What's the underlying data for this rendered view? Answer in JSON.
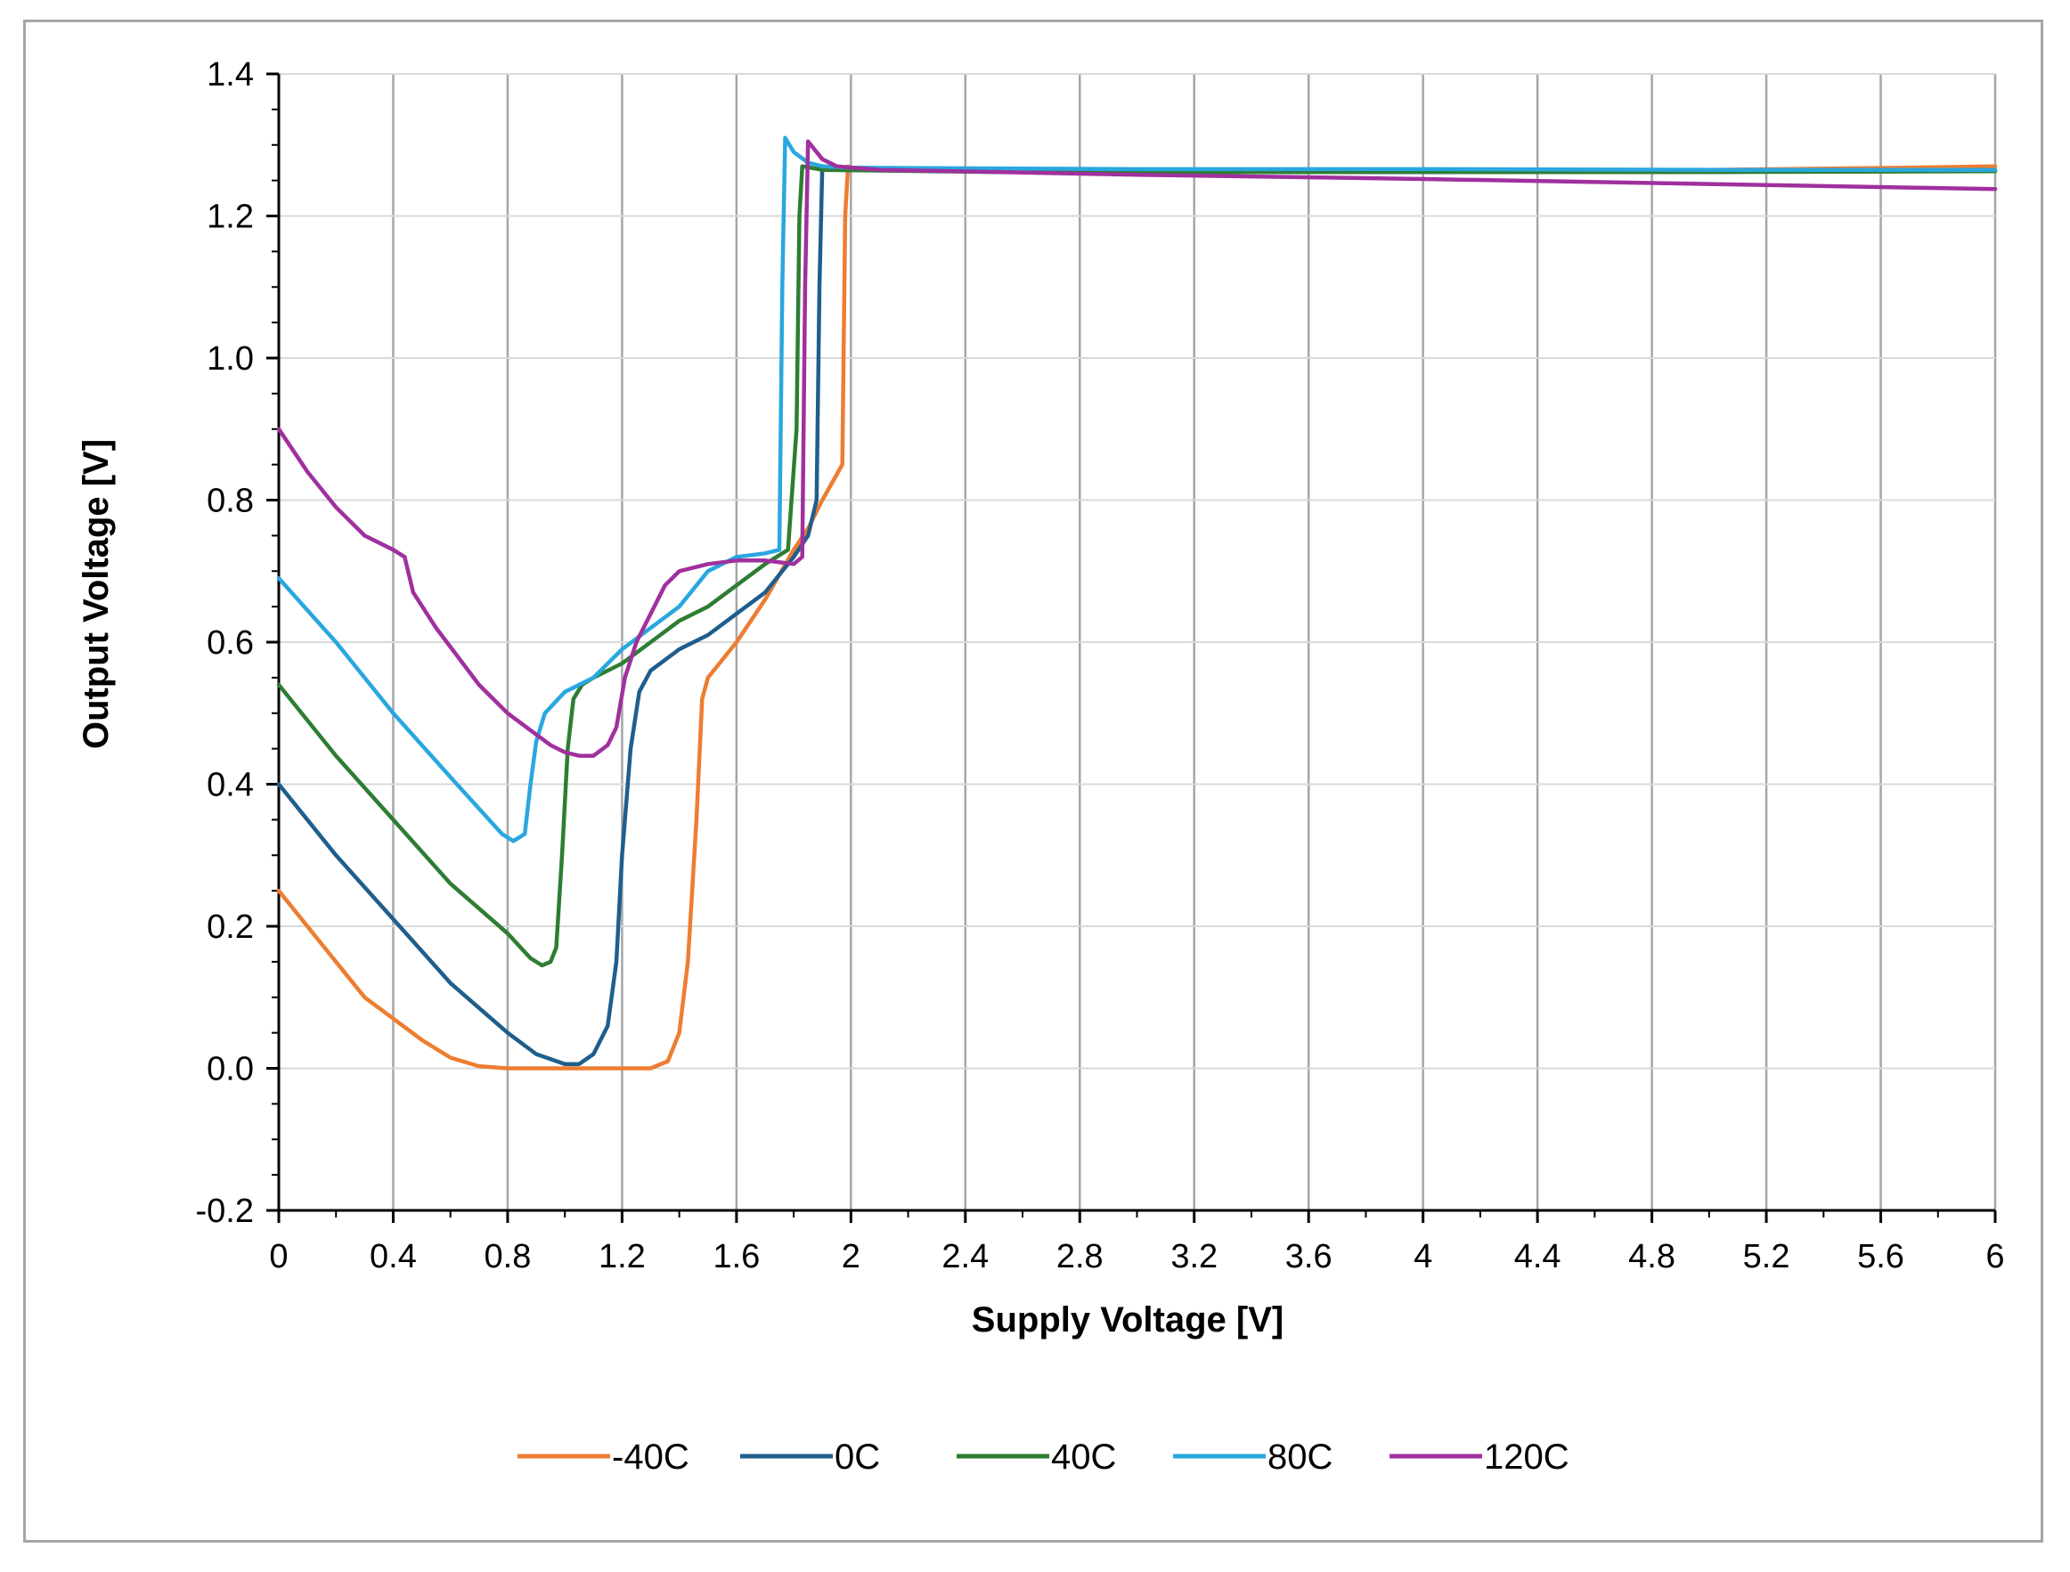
{
  "chart_data": {
    "type": "line",
    "xlabel": "Supply Voltage [V]",
    "ylabel": "Output Voltage [V]",
    "xlim": [
      0,
      6
    ],
    "ylim": [
      -0.2,
      1.4
    ],
    "xticks": [
      0,
      0.4,
      0.8,
      1.2,
      1.6,
      2,
      2.4,
      2.8,
      3.2,
      3.6,
      4,
      4.4,
      4.8,
      5.2,
      5.6,
      6
    ],
    "xtick_labels": [
      "0",
      "0.4",
      "0.8",
      "1.2",
      "1.6",
      "2",
      "2.4",
      "2.8",
      "3.2",
      "3.6",
      "4",
      "4.4",
      "4.8",
      "5.2",
      "5.6",
      "6"
    ],
    "yticks": [
      -0.2,
      0,
      0.2,
      0.4,
      0.6,
      0.8,
      1.0,
      1.2,
      1.4
    ],
    "ytick_labels": [
      "-0.2",
      "0.0",
      "0.2",
      "0.4",
      "0.6",
      "0.8",
      "1.0",
      "1.2",
      "1.4"
    ],
    "grid": "vertical and horizontal major gridlines",
    "legend_position": "bottom",
    "series": [
      {
        "name": "-40C",
        "color": "#ED7D31",
        "points": [
          [
            0,
            0.25
          ],
          [
            0.1,
            0.2
          ],
          [
            0.2,
            0.15
          ],
          [
            0.3,
            0.1
          ],
          [
            0.4,
            0.07
          ],
          [
            0.5,
            0.04
          ],
          [
            0.6,
            0.015
          ],
          [
            0.7,
            0.003
          ],
          [
            0.8,
            0
          ],
          [
            1.0,
            0
          ],
          [
            1.2,
            0
          ],
          [
            1.3,
            0
          ],
          [
            1.36,
            0.01
          ],
          [
            1.4,
            0.05
          ],
          [
            1.43,
            0.15
          ],
          [
            1.46,
            0.35
          ],
          [
            1.48,
            0.52
          ],
          [
            1.5,
            0.55
          ],
          [
            1.6,
            0.6
          ],
          [
            1.7,
            0.66
          ],
          [
            1.8,
            0.73
          ],
          [
            1.85,
            0.76
          ],
          [
            1.9,
            0.8
          ],
          [
            1.97,
            0.85
          ],
          [
            1.98,
            1.2
          ],
          [
            1.99,
            1.27
          ],
          [
            2.0,
            1.265
          ],
          [
            3,
            1.262
          ],
          [
            4,
            1.262
          ],
          [
            5,
            1.265
          ],
          [
            5.7,
            1.268
          ],
          [
            6,
            1.27
          ]
        ]
      },
      {
        "name": "0C",
        "color": "#1F5E8C",
        "points": [
          [
            0,
            0.4
          ],
          [
            0.2,
            0.3
          ],
          [
            0.4,
            0.21
          ],
          [
            0.6,
            0.12
          ],
          [
            0.8,
            0.05
          ],
          [
            0.9,
            0.02
          ],
          [
            1.0,
            0.006
          ],
          [
            1.05,
            0.006
          ],
          [
            1.1,
            0.02
          ],
          [
            1.15,
            0.06
          ],
          [
            1.18,
            0.15
          ],
          [
            1.2,
            0.3
          ],
          [
            1.23,
            0.45
          ],
          [
            1.26,
            0.53
          ],
          [
            1.3,
            0.56
          ],
          [
            1.4,
            0.59
          ],
          [
            1.5,
            0.61
          ],
          [
            1.6,
            0.64
          ],
          [
            1.7,
            0.67
          ],
          [
            1.8,
            0.72
          ],
          [
            1.85,
            0.75
          ],
          [
            1.88,
            0.8
          ],
          [
            1.89,
            1.1
          ],
          [
            1.9,
            1.27
          ],
          [
            1.95,
            1.265
          ],
          [
            2.5,
            1.263
          ],
          [
            3,
            1.262
          ],
          [
            4,
            1.262
          ],
          [
            5,
            1.262
          ],
          [
            6,
            1.265
          ]
        ]
      },
      {
        "name": "40C",
        "color": "#2E7D32",
        "points": [
          [
            0,
            0.54
          ],
          [
            0.2,
            0.44
          ],
          [
            0.4,
            0.35
          ],
          [
            0.6,
            0.26
          ],
          [
            0.8,
            0.19
          ],
          [
            0.88,
            0.155
          ],
          [
            0.92,
            0.145
          ],
          [
            0.95,
            0.15
          ],
          [
            0.97,
            0.17
          ],
          [
            0.99,
            0.3
          ],
          [
            1.01,
            0.45
          ],
          [
            1.03,
            0.52
          ],
          [
            1.06,
            0.54
          ],
          [
            1.1,
            0.55
          ],
          [
            1.2,
            0.57
          ],
          [
            1.3,
            0.6
          ],
          [
            1.4,
            0.63
          ],
          [
            1.5,
            0.65
          ],
          [
            1.6,
            0.68
          ],
          [
            1.7,
            0.71
          ],
          [
            1.78,
            0.73
          ],
          [
            1.81,
            0.9
          ],
          [
            1.82,
            1.2
          ],
          [
            1.83,
            1.27
          ],
          [
            1.9,
            1.265
          ],
          [
            2.5,
            1.262
          ],
          [
            3,
            1.262
          ],
          [
            4,
            1.262
          ],
          [
            5,
            1.262
          ],
          [
            6,
            1.263
          ]
        ]
      },
      {
        "name": "80C",
        "color": "#29A7DF",
        "points": [
          [
            0,
            0.69
          ],
          [
            0.2,
            0.6
          ],
          [
            0.4,
            0.5
          ],
          [
            0.6,
            0.41
          ],
          [
            0.78,
            0.33
          ],
          [
            0.82,
            0.32
          ],
          [
            0.86,
            0.33
          ],
          [
            0.88,
            0.4
          ],
          [
            0.9,
            0.46
          ],
          [
            0.93,
            0.5
          ],
          [
            1.0,
            0.53
          ],
          [
            1.1,
            0.55
          ],
          [
            1.2,
            0.59
          ],
          [
            1.3,
            0.62
          ],
          [
            1.4,
            0.65
          ],
          [
            1.5,
            0.7
          ],
          [
            1.6,
            0.72
          ],
          [
            1.7,
            0.725
          ],
          [
            1.75,
            0.73
          ],
          [
            1.76,
            1.1
          ],
          [
            1.77,
            1.31
          ],
          [
            1.8,
            1.29
          ],
          [
            1.85,
            1.275
          ],
          [
            1.9,
            1.27
          ],
          [
            2.0,
            1.268
          ],
          [
            3,
            1.266
          ],
          [
            4,
            1.266
          ],
          [
            5,
            1.265
          ],
          [
            6,
            1.265
          ]
        ]
      },
      {
        "name": "120C",
        "color": "#A0309E",
        "points": [
          [
            0,
            0.9
          ],
          [
            0.1,
            0.84
          ],
          [
            0.2,
            0.79
          ],
          [
            0.3,
            0.75
          ],
          [
            0.4,
            0.73
          ],
          [
            0.44,
            0.72
          ],
          [
            0.47,
            0.67
          ],
          [
            0.55,
            0.62
          ],
          [
            0.7,
            0.54
          ],
          [
            0.8,
            0.5
          ],
          [
            0.9,
            0.47
          ],
          [
            0.95,
            0.455
          ],
          [
            1.0,
            0.445
          ],
          [
            1.05,
            0.44
          ],
          [
            1.1,
            0.44
          ],
          [
            1.15,
            0.455
          ],
          [
            1.18,
            0.48
          ],
          [
            1.21,
            0.55
          ],
          [
            1.25,
            0.6
          ],
          [
            1.3,
            0.64
          ],
          [
            1.35,
            0.68
          ],
          [
            1.4,
            0.7
          ],
          [
            1.5,
            0.71
          ],
          [
            1.6,
            0.715
          ],
          [
            1.7,
            0.715
          ],
          [
            1.8,
            0.71
          ],
          [
            1.83,
            0.72
          ],
          [
            1.84,
            1.1
          ],
          [
            1.85,
            1.305
          ],
          [
            1.9,
            1.28
          ],
          [
            1.95,
            1.27
          ],
          [
            2.1,
            1.265
          ],
          [
            3,
            1.258
          ],
          [
            4,
            1.252
          ],
          [
            5,
            1.245
          ],
          [
            5.7,
            1.24
          ],
          [
            6,
            1.238
          ]
        ]
      }
    ]
  }
}
